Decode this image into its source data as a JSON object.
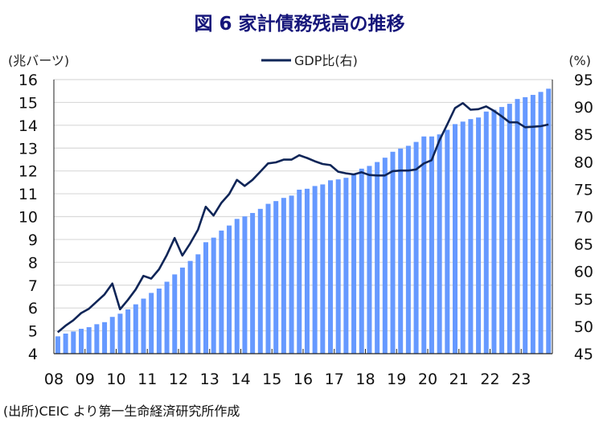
{
  "title": "図 6  家計債務残高の推移",
  "source": "(出所)CEIC より第一生命経済研究所作成",
  "colors": {
    "bar": "#6699ff",
    "line": "#0f2557",
    "title": "#16167a",
    "grid": "#d9d9d9"
  },
  "chart_data": {
    "type": "bar+line",
    "title": "図 6  家計債務残高の推移",
    "ylabel_left": "(兆バーツ)",
    "ylabel_right": "(%)",
    "ylim_left": [
      4,
      16
    ],
    "ylim_right": [
      45,
      95
    ],
    "yticks_left": [
      "4",
      "5",
      "6",
      "7",
      "8",
      "9",
      "10",
      "11",
      "12",
      "13",
      "14",
      "15",
      "16"
    ],
    "yticks_right": [
      "45",
      "50",
      "55",
      "60",
      "65",
      "70",
      "75",
      "80",
      "85",
      "90",
      "95"
    ],
    "xtick_labels": [
      "08",
      "09",
      "10",
      "11",
      "12",
      "13",
      "14",
      "15",
      "16",
      "17",
      "18",
      "19",
      "20",
      "21",
      "22",
      "23"
    ],
    "periods": "quarterly 2008Q1-2023Q4",
    "grid": true,
    "legend": {
      "label": "GDP比(右)",
      "placement": "top-center"
    },
    "series": [
      {
        "name": "家計債務残高",
        "type": "bar",
        "axis": "left",
        "values": [
          4.76,
          4.88,
          4.97,
          5.09,
          5.16,
          5.29,
          5.38,
          5.61,
          5.75,
          5.94,
          6.16,
          6.41,
          6.66,
          6.85,
          7.15,
          7.47,
          7.77,
          8.06,
          8.35,
          8.88,
          9.08,
          9.39,
          9.61,
          9.9,
          10.01,
          10.16,
          10.34,
          10.56,
          10.68,
          10.82,
          10.92,
          11.18,
          11.22,
          11.34,
          11.41,
          11.59,
          11.63,
          11.7,
          11.86,
          12.1,
          12.22,
          12.39,
          12.58,
          12.84,
          12.98,
          13.1,
          13.27,
          13.51,
          13.51,
          13.6,
          13.8,
          14.05,
          14.16,
          14.27,
          14.34,
          14.6,
          14.68,
          14.8,
          14.94,
          15.15,
          15.23,
          15.33,
          15.46,
          15.6
        ]
      },
      {
        "name": "GDP比(右)",
        "type": "line",
        "axis": "right",
        "values": [
          48.9,
          50.1,
          51.1,
          52.4,
          53.2,
          54.5,
          55.8,
          57.8,
          53.1,
          54.8,
          56.7,
          59.2,
          58.7,
          60.4,
          63.0,
          66.1,
          62.9,
          65.1,
          67.6,
          71.8,
          70.2,
          72.5,
          74.1,
          76.7,
          75.6,
          76.7,
          78.2,
          79.7,
          79.9,
          80.4,
          80.4,
          81.2,
          80.7,
          80.1,
          79.6,
          79.4,
          78.2,
          77.9,
          77.7,
          78.1,
          77.6,
          77.5,
          77.5,
          78.3,
          78.4,
          78.4,
          78.6,
          79.7,
          80.3,
          83.9,
          86.8,
          89.8,
          90.7,
          89.5,
          89.6,
          90.1,
          89.3,
          88.3,
          87.2,
          87.2,
          86.3,
          86.4,
          86.5,
          86.8
        ]
      }
    ]
  }
}
